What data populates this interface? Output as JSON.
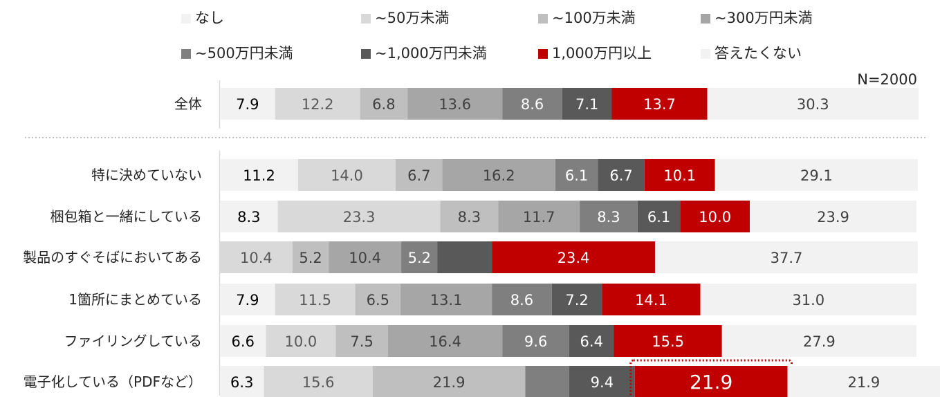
{
  "chart_data": {
    "type": "bar",
    "orientation": "horizontal",
    "stacked": true,
    "series": [
      {
        "name": "なし",
        "color": "#F2F2F2"
      },
      {
        "name": "~50万未満",
        "color": "#D9D9D9"
      },
      {
        "name": "~100万未満",
        "color": "#BFBFBF"
      },
      {
        "name": "~300万円未満",
        "color": "#A6A6A6"
      },
      {
        "name": "~500万円未満",
        "color": "#7F7F7F"
      },
      {
        "name": "~1,000万円未満",
        "color": "#595959"
      },
      {
        "name": "1,000万円以上",
        "color": "#C00000"
      },
      {
        "name": "答えたくない",
        "color": "#F2F2F2"
      }
    ],
    "categories": [
      "全体",
      "特に決めていない",
      "梱包箱と一緒にしている",
      "製品のすぐそばにおいてある",
      "1箇所にまとめている",
      "ファイリングしている",
      "電子化している（PDFなど）"
    ],
    "values": [
      [
        7.9,
        12.2,
        6.8,
        13.6,
        8.6,
        7.1,
        13.7,
        30.3
      ],
      [
        11.2,
        14.0,
        6.7,
        16.2,
        6.1,
        6.7,
        10.1,
        29.1
      ],
      [
        8.3,
        23.3,
        8.3,
        11.7,
        8.3,
        6.1,
        10.0,
        23.9
      ],
      [
        0,
        10.4,
        5.2,
        10.4,
        5.2,
        7.8,
        23.4,
        37.7
      ],
      [
        7.9,
        11.5,
        6.5,
        13.1,
        8.6,
        7.2,
        14.1,
        31.0
      ],
      [
        6.6,
        10.0,
        7.5,
        16.4,
        9.6,
        6.4,
        15.5,
        27.9
      ],
      [
        6.3,
        15.6,
        21.9,
        0,
        6.3,
        9.4,
        21.9,
        21.9
      ]
    ],
    "labels": [
      [
        "7.9",
        "12.2",
        "6.8",
        "13.6",
        "8.6",
        "7.1",
        "13.7",
        "30.3"
      ],
      [
        "11.2",
        "14.0",
        "6.7",
        "16.2",
        "6.1",
        "6.7",
        "10.1",
        "29.1"
      ],
      [
        "8.3",
        "23.3",
        "8.3",
        "11.7",
        "8.3",
        "6.1",
        "10.0",
        "23.9"
      ],
      [
        "",
        "10.4",
        "5.2",
        "10.4",
        "5.2",
        "",
        "23.4",
        "37.7"
      ],
      [
        "7.9",
        "11.5",
        "6.5",
        "13.1",
        "8.6",
        "7.2",
        "14.1",
        "31.0"
      ],
      [
        "6.6",
        "10.0",
        "7.5",
        "16.4",
        "9.6",
        "6.4",
        "15.5",
        "27.9"
      ],
      [
        "6.3",
        "15.6",
        "21.9",
        "",
        "",
        "9.4",
        "21.9",
        "21.9"
      ]
    ],
    "highlight": {
      "row": 6,
      "segment": 6
    },
    "xlim": [
      0,
      100
    ],
    "n_label": "N=2000",
    "legend_position": "top"
  }
}
